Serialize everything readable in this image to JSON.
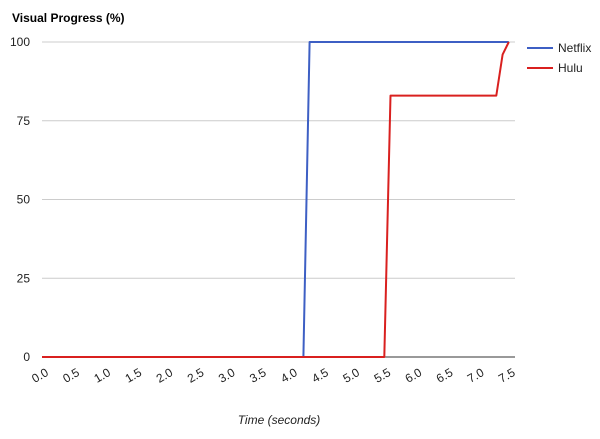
{
  "chart_data": {
    "type": "line",
    "title": "Visual Progress (%)",
    "xlabel": "Time (seconds)",
    "ylabel": "",
    "xlim": [
      0,
      7.6
    ],
    "ylim": [
      0,
      100
    ],
    "x_ticks": [
      "0.0",
      "0.5",
      "1.0",
      "1.5",
      "2.0",
      "2.5",
      "3.0",
      "3.5",
      "4.0",
      "4.5",
      "5.0",
      "5.5",
      "6.0",
      "6.5",
      "7.0",
      "7.5"
    ],
    "y_ticks": [
      "0",
      "25",
      "50",
      "75",
      "100"
    ],
    "grid": true,
    "legend_position": "right",
    "series": [
      {
        "name": "Netflix",
        "color": "#3d5fc4",
        "points": [
          [
            0,
            0
          ],
          [
            4.2,
            0
          ],
          [
            4.3,
            100
          ],
          [
            7.5,
            100
          ]
        ]
      },
      {
        "name": "Hulu",
        "color": "#d9201f",
        "points": [
          [
            0,
            0
          ],
          [
            5.5,
            0
          ],
          [
            5.6,
            83
          ],
          [
            7.3,
            83
          ],
          [
            7.4,
            96
          ],
          [
            7.5,
            100
          ]
        ]
      }
    ]
  }
}
